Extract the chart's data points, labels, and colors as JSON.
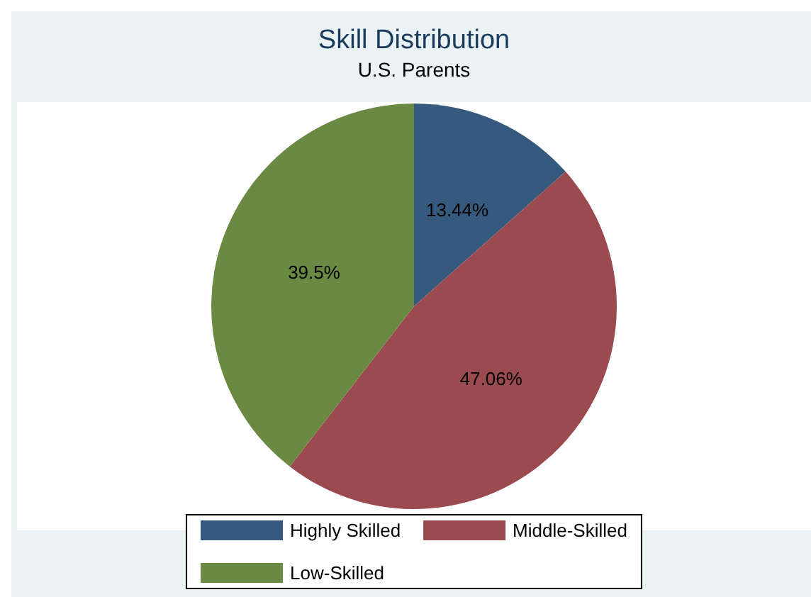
{
  "chart_data": {
    "type": "pie",
    "title": "Skill Distribution",
    "subtitle": "U.S. Parents",
    "categories": [
      "Highly Skilled",
      "Middle-Skilled",
      "Low-Skilled"
    ],
    "values": [
      13.44,
      47.06,
      39.5
    ],
    "colors": [
      "#365a7e",
      "#9b4a50",
      "#6a8a44"
    ],
    "value_labels": [
      "13.44%",
      "47.06%",
      "39.5%"
    ],
    "legend": "bottom"
  }
}
